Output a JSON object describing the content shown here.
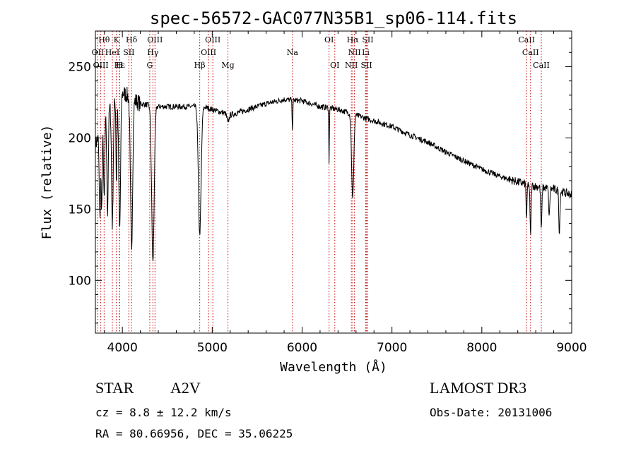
{
  "chart_data": {
    "type": "line",
    "title": "spec-56572-GAC077N35B1_sp06-114.fits",
    "xlabel": "Wavelength (Å)",
    "ylabel": "Flux (relative)",
    "xlim": [
      3700,
      9000
    ],
    "ylim": [
      63,
      275
    ],
    "xticks": [
      4000,
      5000,
      6000,
      7000,
      8000,
      9000
    ],
    "yticks": [
      100,
      150,
      200,
      250
    ],
    "continuum": [
      [
        3700,
        195
      ],
      [
        3800,
        215
      ],
      [
        3900,
        225
      ],
      [
        4000,
        232
      ],
      [
        4100,
        228
      ],
      [
        4200,
        224
      ],
      [
        4300,
        223
      ],
      [
        4400,
        222
      ],
      [
        4500,
        222
      ],
      [
        4600,
        222
      ],
      [
        4700,
        222
      ],
      [
        4800,
        222
      ],
      [
        4900,
        222
      ],
      [
        5000,
        220
      ],
      [
        5200,
        216
      ],
      [
        5400,
        220
      ],
      [
        5600,
        224
      ],
      [
        5800,
        227
      ],
      [
        6000,
        226
      ],
      [
        6200,
        222
      ],
      [
        6400,
        220
      ],
      [
        6600,
        216
      ],
      [
        6800,
        212
      ],
      [
        7000,
        208
      ],
      [
        7200,
        202
      ],
      [
        7400,
        197
      ],
      [
        7600,
        190
      ],
      [
        7800,
        184
      ],
      [
        8000,
        178
      ],
      [
        8200,
        173
      ],
      [
        8400,
        169
      ],
      [
        8600,
        166
      ],
      [
        8800,
        164
      ],
      [
        9000,
        160
      ]
    ],
    "absorption": [
      [
        3750,
        60,
        8
      ],
      [
        3771,
        55,
        6
      ],
      [
        3798,
        60,
        7
      ],
      [
        3835,
        70,
        8
      ],
      [
        3889,
        85,
        9
      ],
      [
        3934,
        60,
        5
      ],
      [
        3970,
        95,
        10
      ],
      [
        4102,
        105,
        12
      ],
      [
        4340,
        110,
        14
      ],
      [
        4861,
        90,
        15
      ],
      [
        5175,
        6,
        10
      ],
      [
        5893,
        20,
        4
      ],
      [
        6300,
        40,
        3
      ],
      [
        6563,
        60,
        12
      ],
      [
        6300,
        0,
        1
      ],
      [
        8498,
        25,
        5
      ],
      [
        8542,
        35,
        6
      ],
      [
        8662,
        30,
        6
      ],
      [
        8750,
        20,
        6
      ],
      [
        8863,
        30,
        6
      ]
    ],
    "lines": [
      {
        "label": "Hθ",
        "x": 3797,
        "row": 0
      },
      {
        "label": "K",
        "x": 3934,
        "row": 0
      },
      {
        "label": "Hδ",
        "x": 4102,
        "row": 0
      },
      {
        "label": "OIII",
        "x": 4363,
        "row": 0
      },
      {
        "label": "OIII",
        "x": 5007,
        "row": 0
      },
      {
        "label": "OI",
        "x": 6300,
        "row": 0
      },
      {
        "label": "Hα",
        "x": 6563,
        "row": 0
      },
      {
        "label": "SII",
        "x": 6731,
        "row": 0
      },
      {
        "label": "CaII",
        "x": 8498,
        "row": 0
      },
      {
        "label": "OII",
        "x": 3727,
        "row": 1
      },
      {
        "label": "HeI",
        "x": 3889,
        "row": 1
      },
      {
        "label": "SII",
        "x": 4072,
        "row": 1
      },
      {
        "label": "Hγ",
        "x": 4340,
        "row": 1
      },
      {
        "label": "OIII",
        "x": 4959,
        "row": 1
      },
      {
        "label": "Na",
        "x": 5893,
        "row": 1
      },
      {
        "label": "NII",
        "x": 6583,
        "row": 1
      },
      {
        "label": "Li",
        "x": 6708,
        "row": 1
      },
      {
        "label": "CaII",
        "x": 8542,
        "row": 1
      },
      {
        "label": "OIII",
        "x": 3760,
        "row": 2
      },
      {
        "label": "Hε",
        "x": 3970,
        "row": 2
      },
      {
        "label": "H",
        "x": 3968,
        "row": 2
      },
      {
        "label": "G",
        "x": 4305,
        "row": 2
      },
      {
        "label": "Hβ",
        "x": 4861,
        "row": 2
      },
      {
        "label": "Mg",
        "x": 5175,
        "row": 2
      },
      {
        "label": "OI",
        "x": 6364,
        "row": 2
      },
      {
        "label": "NII",
        "x": 6548,
        "row": 2
      },
      {
        "label": "SII",
        "x": 6717,
        "row": 2
      },
      {
        "label": "CaII",
        "x": 8662,
        "row": 2
      }
    ]
  },
  "info": {
    "object_class": "STAR",
    "subclass": "A2V",
    "survey": "LAMOST DR3",
    "redshift": "cz = 8.8 ± 12.2 km/s",
    "obs_date": "Obs-Date: 20131006",
    "coords": "RA =  80.66956, DEC =  35.06225"
  }
}
